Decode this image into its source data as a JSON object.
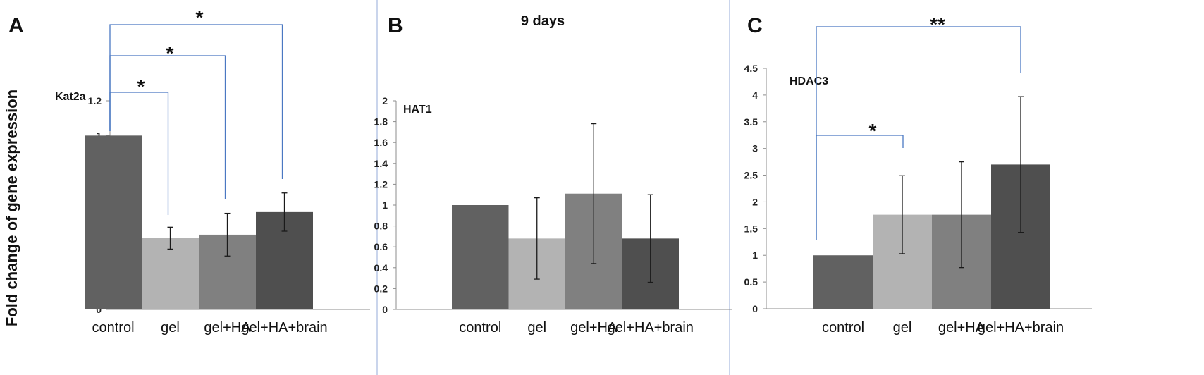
{
  "figure": {
    "ylabel": "Fold change of gene expression",
    "colors": {
      "bars": [
        "#616161",
        "#b3b3b3",
        "#808080",
        "#4f4f4f"
      ],
      "bracket": "#4a78c2",
      "divider": "#b9c7e6",
      "axis": "#8c8c8c",
      "errorbar": "#1a1a1a"
    }
  },
  "chart_data": [
    {
      "panel": "A",
      "type": "bar",
      "title": "",
      "gene": "Kat2a",
      "categories": [
        "control",
        "gel",
        "gel+HA",
        "gel+HA+brain"
      ],
      "values": [
        1.0,
        0.41,
        0.43,
        0.56
      ],
      "errors": [
        null,
        0.063,
        0.123,
        0.11
      ],
      "ylim": [
        0,
        1.2
      ],
      "yticks": [
        "0",
        "0.2",
        "0.4",
        "0.6",
        "0.8",
        "1",
        "1.2"
      ],
      "ylabel": "Fold change of gene expression",
      "grid": false,
      "significance": [
        {
          "from": "control",
          "to": "gel",
          "label": "*"
        },
        {
          "from": "control",
          "to": "gel+HA",
          "label": "*"
        },
        {
          "from": "control",
          "to": "gel+HA+brain",
          "label": "*"
        }
      ]
    },
    {
      "panel": "B",
      "type": "bar",
      "title": "9 days",
      "gene": "HAT1",
      "categories": [
        "control",
        "gel",
        "gel+HA",
        "gel+HA+brain"
      ],
      "values": [
        1.0,
        0.68,
        1.11,
        0.68
      ],
      "errors": [
        null,
        0.39,
        0.67,
        0.42
      ],
      "ylim": [
        0,
        2
      ],
      "yticks": [
        "0",
        "0.2",
        "0.4",
        "0.6",
        "0.8",
        "1",
        "1.2",
        "1.4",
        "1.6",
        "1.8",
        "2"
      ],
      "grid": false,
      "significance": []
    },
    {
      "panel": "C",
      "type": "bar",
      "title": "",
      "gene": "HDAC3",
      "categories": [
        "control",
        "gel",
        "gel+HA",
        "gel+HA+brain"
      ],
      "values": [
        1.0,
        1.76,
        1.76,
        2.7
      ],
      "errors": [
        null,
        0.73,
        0.99,
        1.27
      ],
      "ylim": [
        0,
        4.5
      ],
      "yticks": [
        "0",
        "0.5",
        "1",
        "1.5",
        "2",
        "2.5",
        "3",
        "3.5",
        "4",
        "4.5"
      ],
      "grid": false,
      "significance": [
        {
          "from": "control",
          "to": "gel",
          "label": "*"
        },
        {
          "from": "control",
          "to": "gel+HA+brain",
          "label": "**"
        }
      ]
    }
  ]
}
